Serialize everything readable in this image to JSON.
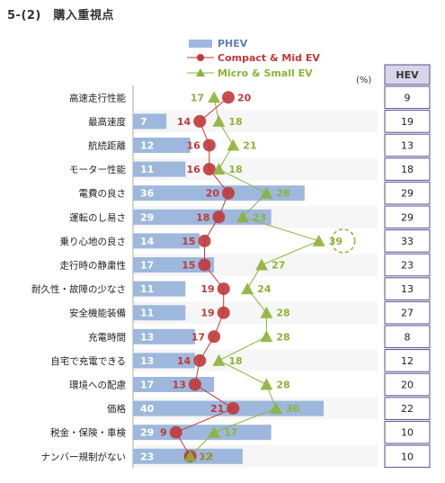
{
  "title": "5-(2)　購入重視点",
  "unit_label": "(%)",
  "colors": {
    "phev": "#9db8dc",
    "compact": "#c0393b",
    "micro": "#8db33a",
    "hev_border": "#5a4b8c",
    "hev_header_bg": "#d8d4ea"
  },
  "chart_data": {
    "type": "bar",
    "categories": [
      "高速走行性能",
      "最高速度",
      "航続距離",
      "モーター性能",
      "電費の良さ",
      "運転のし易さ",
      "乗り心地の良さ",
      "走行時の静粛性",
      "耐久性・故障の少なさ",
      "安全機能装備",
      "充電時間",
      "自宅で充電できる",
      "環境への配慮",
      "価格",
      "税金・保険・車検",
      "ナンバー規制がない"
    ],
    "series": [
      {
        "name": "PHEV",
        "kind": "bar",
        "values": [
          null,
          7,
          12,
          11,
          36,
          29,
          14,
          17,
          11,
          11,
          13,
          13,
          17,
          40,
          29,
          23
        ]
      },
      {
        "name": "Compact & Mid EV",
        "kind": "line",
        "values": [
          20,
          14,
          16,
          16,
          20,
          18,
          15,
          15,
          19,
          19,
          17,
          14,
          13,
          21,
          9,
          12
        ]
      },
      {
        "name": "Micro & Small EV",
        "kind": "line",
        "values": [
          17,
          18,
          21,
          18,
          28,
          23,
          39,
          27,
          24,
          28,
          28,
          18,
          28,
          30,
          17,
          12
        ]
      }
    ],
    "hev": {
      "header": "HEV",
      "values": [
        9,
        19,
        13,
        18,
        29,
        29,
        33,
        23,
        13,
        27,
        8,
        12,
        20,
        22,
        10,
        10
      ]
    },
    "highlight": {
      "series": "Micro & Small EV",
      "category": "乗り心地の良さ"
    },
    "xlim": [
      0,
      45
    ]
  }
}
